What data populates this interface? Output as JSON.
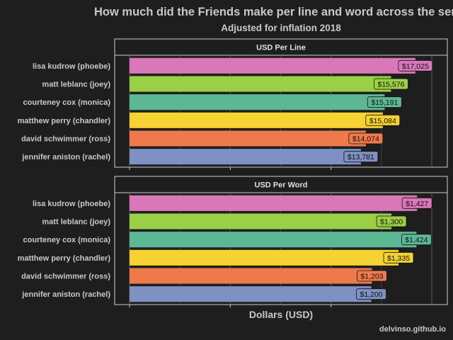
{
  "title": "How much did the Friends make per line and word across the series",
  "subtitle": "Adjusted for inflation 2018",
  "xlabel": "Dollars (USD)",
  "caption": "delvinso.github.io",
  "chart_data": [
    {
      "type": "bar",
      "orientation": "horizontal",
      "panel_title": "USD Per Line",
      "categories": [
        "lisa kudrow (phoebe)",
        "matt leblanc (joey)",
        "courteney cox (monica)",
        "matthew perry (chandler)",
        "david schwimmer (ross)",
        "jennifer aniston (rachel)"
      ],
      "values": [
        17025,
        15576,
        15191,
        15084,
        14074,
        13781
      ],
      "labels": [
        "$17,025",
        "$15,576",
        "$15,191",
        "$15,084",
        "$14,074",
        "$13,781"
      ],
      "colors": [
        "#d977b8",
        "#9bcf45",
        "#5cb893",
        "#f6d232",
        "#ee7a4c",
        "#7f90c3"
      ],
      "xlim": [
        0,
        18000
      ]
    },
    {
      "type": "bar",
      "orientation": "horizontal",
      "panel_title": "USD Per Word",
      "categories": [
        "lisa kudrow (phoebe)",
        "matt leblanc (joey)",
        "courteney cox (monica)",
        "matthew perry (chandler)",
        "david schwimmer (ross)",
        "jennifer aniston (rachel)"
      ],
      "values": [
        1427,
        1300,
        1424,
        1335,
        1203,
        1200
      ],
      "labels": [
        "$1,427",
        "$1,300",
        "$1,424",
        "$1,335",
        "$1,203",
        "$1,200"
      ],
      "colors": [
        "#d977b8",
        "#9bcf45",
        "#5cb893",
        "#f6d232",
        "#ee7a4c",
        "#7f90c3"
      ],
      "xlim": [
        0,
        1500
      ]
    }
  ]
}
